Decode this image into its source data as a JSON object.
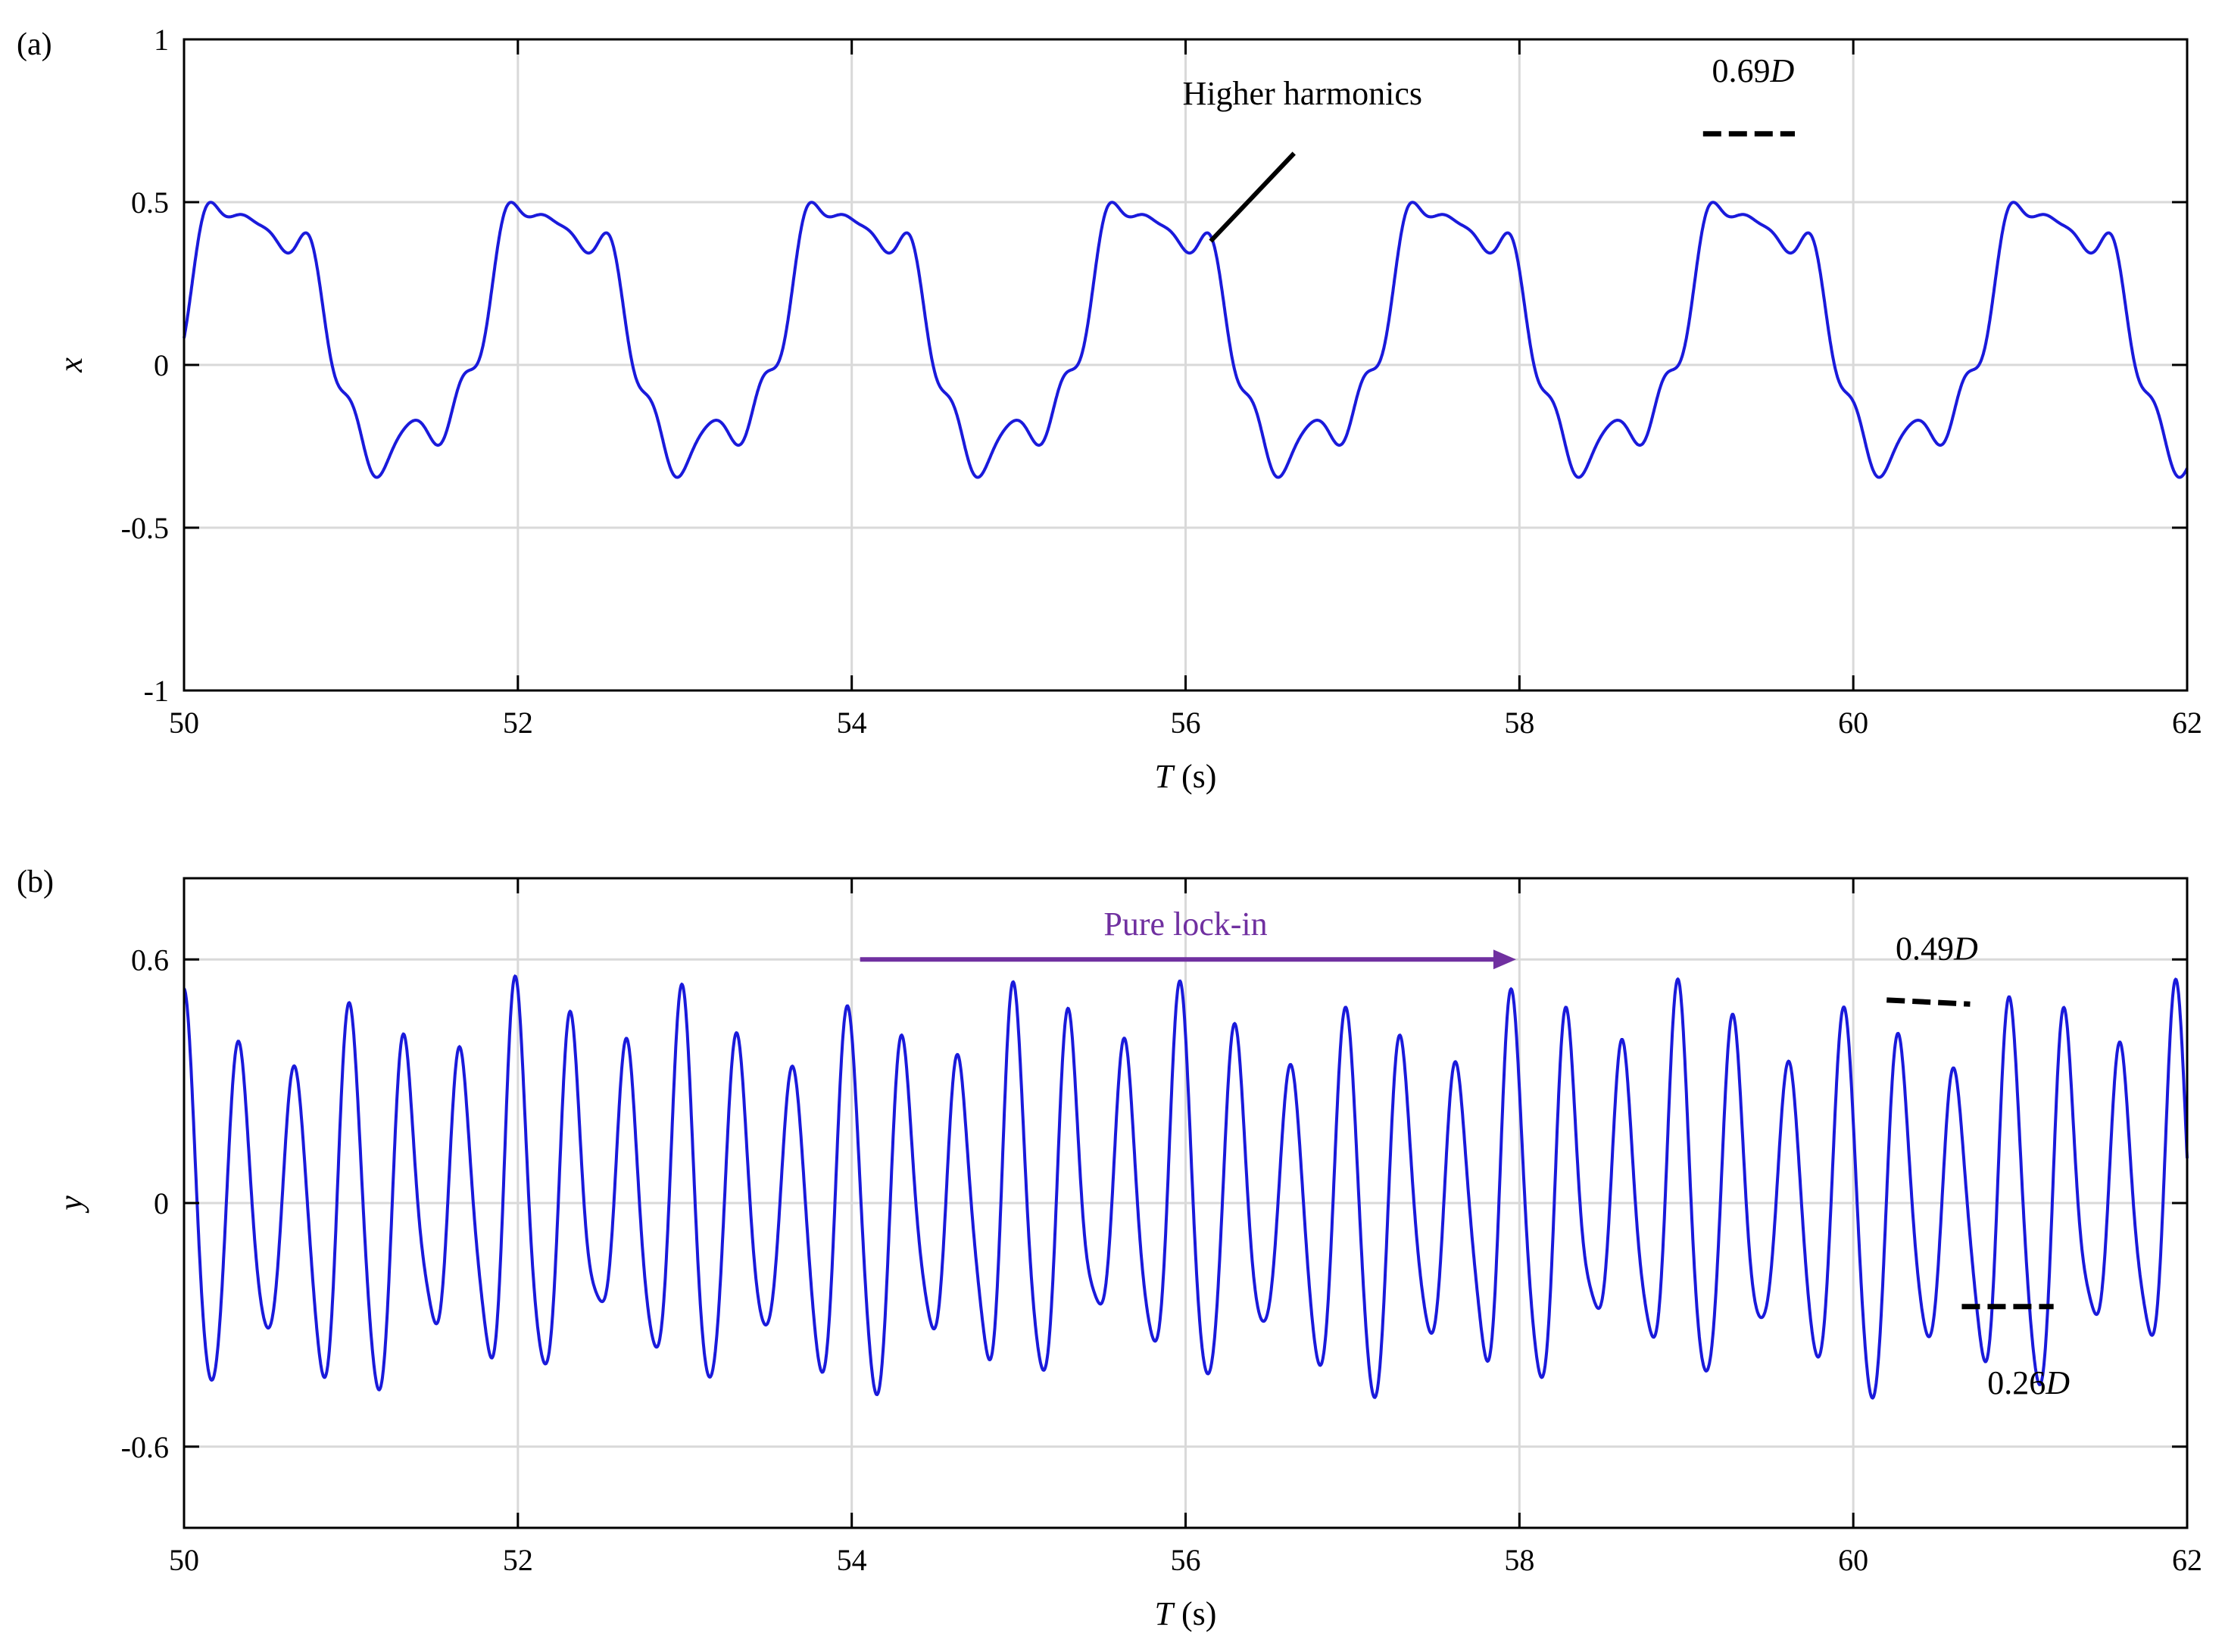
{
  "chart_data": [
    {
      "type": "line",
      "panel_label": "(a)",
      "xlabel": "T (s)",
      "ylabel": "x",
      "xlim": [
        50,
        62
      ],
      "ylim": [
        -1,
        1
      ],
      "xticks": [
        50,
        52,
        54,
        56,
        58,
        60,
        62
      ],
      "yticks": [
        -1,
        -0.5,
        0,
        0.5,
        1
      ],
      "xtick_labels": [
        "50",
        "52",
        "54",
        "56",
        "58",
        "60",
        "62"
      ],
      "ytick_labels": [
        "-1",
        "-0.5",
        "0",
        "0.5",
        "1"
      ],
      "grid": true,
      "line_color": "#1a1adb",
      "series": [
        {
          "period_s": 1.8,
          "harmonics": [
            {
              "order": 1,
              "amplitude": 0.4,
              "phase": 0.17
            },
            {
              "order": 3,
              "amplitude": 0.09,
              "phase": -0.14
            },
            {
              "order": 6,
              "amplitude": 0.05,
              "phase": -1.4
            },
            {
              "order": 8,
              "amplitude": 0.025,
              "phase": -1.2
            },
            {
              "order": 0,
              "amplitude": 0.1,
              "phase": 0
            }
          ]
        }
      ],
      "annotations": [
        {
          "text": "Higher harmonics",
          "at": [
            56.7,
            0.8
          ],
          "pointer_from": [
            56.65,
            0.65
          ],
          "pointer_to": [
            56.15,
            0.38
          ]
        },
        {
          "text_main": "0.69",
          "text_italic": "D",
          "at": [
            59.4,
            0.87
          ],
          "dash_line": [
            [
              59.1,
              0.71
            ],
            [
              59.65,
              0.71
            ]
          ]
        }
      ]
    },
    {
      "type": "line",
      "panel_label": "(b)",
      "xlabel": "T (s)",
      "ylabel": "y",
      "xlim": [
        50,
        62
      ],
      "ylim": [
        -0.8,
        0.8
      ],
      "xticks": [
        50,
        52,
        54,
        56,
        58,
        60,
        62
      ],
      "yticks": [
        -0.6,
        0,
        0.6
      ],
      "xtick_labels": [
        "50",
        "52",
        "54",
        "56",
        "58",
        "60",
        "62"
      ],
      "ytick_labels": [
        "-0.6",
        "0",
        "0.6"
      ],
      "grid": true,
      "line_color": "#1a1adb",
      "series": [
        {
          "carrier_period_s": 0.3315,
          "amplitude_mean": 0.4,
          "amplitude_mod": 0.09,
          "mod_period_s": 1.0,
          "offset": 0.0
        }
      ],
      "annotations": [
        {
          "text": "Pure lock-in",
          "color": "#7030a0",
          "at": [
            56.0,
            0.66
          ],
          "arrow_from": [
            54.05,
            0.6
          ],
          "arrow_to": [
            57.98,
            0.6
          ]
        },
        {
          "text_main": "0.49",
          "text_italic": "D",
          "at": [
            60.5,
            0.6
          ],
          "dash_line": [
            [
              60.2,
              0.5
            ],
            [
              60.7,
              0.49
            ]
          ]
        },
        {
          "text_main": "0.26",
          "text_italic": "D",
          "at": [
            61.05,
            -0.47
          ],
          "dash_line": [
            [
              60.65,
              -0.255
            ],
            [
              61.2,
              -0.255
            ]
          ]
        }
      ]
    }
  ]
}
